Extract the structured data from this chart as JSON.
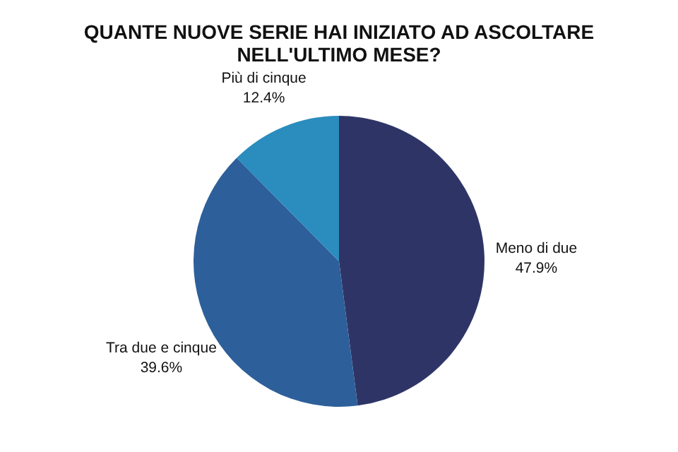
{
  "chart_data": {
    "type": "pie",
    "title": "QUANTE NUOVE SERIE HAI INIZIATO AD ASCOLTARE\nNELL'ULTIMO MESE?",
    "categories": [
      "Meno di due",
      "Tra due e cinque",
      "Più di cinque"
    ],
    "values": [
      47.9,
      39.6,
      12.4
    ],
    "value_labels": [
      "47.9%",
      "39.6%",
      "12.4%"
    ],
    "colors": [
      "#2e3566",
      "#2d5f9a",
      "#2b8cbe"
    ]
  }
}
